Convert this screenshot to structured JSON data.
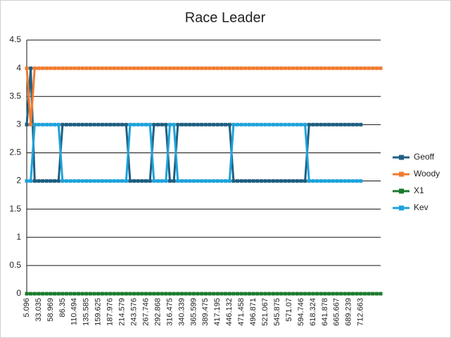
{
  "chart_data": {
    "type": "line",
    "title": "Race Leader",
    "categories": [
      "5.096",
      null,
      null,
      "33.035",
      null,
      null,
      "58.969",
      null,
      null,
      "86.35",
      null,
      null,
      "110.494",
      null,
      null,
      "135.585",
      null,
      null,
      "159.625",
      null,
      null,
      "187.976",
      null,
      null,
      "214.579",
      null,
      null,
      "243.576",
      null,
      null,
      "267.746",
      null,
      null,
      "292.868",
      null,
      null,
      "316.475",
      null,
      null,
      "340.339",
      null,
      null,
      "365.599",
      null,
      null,
      "389.475",
      null,
      null,
      "417.195",
      null,
      null,
      "446.132",
      null,
      null,
      "471.458",
      null,
      null,
      "496.871",
      null,
      null,
      "521.067",
      null,
      null,
      "545.875",
      null,
      null,
      "571.07",
      null,
      null,
      "594.746",
      null,
      null,
      "618.324",
      null,
      null,
      "641.878",
      null,
      null,
      "665.667",
      null,
      null,
      "689.239",
      null,
      null,
      "712.663",
      null,
      null,
      null,
      null,
      null
    ],
    "series": [
      {
        "name": "Geoff",
        "color": "#1f5f82",
        "values": [
          3,
          4,
          2,
          2,
          2,
          2,
          2,
          2,
          2,
          3,
          3,
          3,
          3,
          3,
          3,
          3,
          3,
          3,
          3,
          3,
          3,
          3,
          3,
          3,
          3,
          3,
          2,
          2,
          2,
          2,
          2,
          2,
          3,
          3,
          3,
          3,
          2,
          2,
          3,
          3,
          3,
          3,
          3,
          3,
          3,
          3,
          3,
          3,
          3,
          3,
          3,
          3,
          2,
          2,
          2,
          2,
          2,
          2,
          2,
          2,
          2,
          2,
          2,
          2,
          2,
          2,
          2,
          2,
          2,
          2,
          2,
          3,
          3,
          3,
          3,
          3,
          3,
          3,
          3,
          3,
          3,
          3,
          3,
          3,
          3,
          null,
          null,
          null,
          null,
          null
        ]
      },
      {
        "name": "Woody",
        "color": "#f07b2f",
        "values": [
          4,
          3,
          4,
          4,
          4,
          4,
          4,
          4,
          4,
          4,
          4,
          4,
          4,
          4,
          4,
          4,
          4,
          4,
          4,
          4,
          4,
          4,
          4,
          4,
          4,
          4,
          4,
          4,
          4,
          4,
          4,
          4,
          4,
          4,
          4,
          4,
          4,
          4,
          4,
          4,
          4,
          4,
          4,
          4,
          4,
          4,
          4,
          4,
          4,
          4,
          4,
          4,
          4,
          4,
          4,
          4,
          4,
          4,
          4,
          4,
          4,
          4,
          4,
          4,
          4,
          4,
          4,
          4,
          4,
          4,
          4,
          4,
          4,
          4,
          4,
          4,
          4,
          4,
          4,
          4,
          4,
          4,
          4,
          4,
          4,
          4,
          4,
          4,
          4,
          4
        ]
      },
      {
        "name": "X1",
        "color": "#1b7a2d",
        "values": [
          0,
          0,
          0,
          0,
          0,
          0,
          0,
          0,
          0,
          0,
          0,
          0,
          0,
          0,
          0,
          0,
          0,
          0,
          0,
          0,
          0,
          0,
          0,
          0,
          0,
          0,
          0,
          0,
          0,
          0,
          0,
          0,
          0,
          0,
          0,
          0,
          0,
          0,
          0,
          0,
          0,
          0,
          0,
          0,
          0,
          0,
          0,
          0,
          0,
          0,
          0,
          0,
          0,
          0,
          0,
          0,
          0,
          0,
          0,
          0,
          0,
          0,
          0,
          0,
          0,
          0,
          0,
          0,
          0,
          0,
          0,
          0,
          0,
          0,
          0,
          0,
          0,
          0,
          0,
          0,
          0,
          0,
          0,
          0,
          0,
          0,
          0,
          0,
          0,
          0
        ]
      },
      {
        "name": "Kev",
        "color": "#1ea3db",
        "values": [
          2,
          2,
          3,
          3,
          3,
          3,
          3,
          3,
          3,
          2,
          2,
          2,
          2,
          2,
          2,
          2,
          2,
          2,
          2,
          2,
          2,
          2,
          2,
          2,
          2,
          2,
          3,
          3,
          3,
          3,
          3,
          3,
          2,
          2,
          2,
          2,
          3,
          3,
          2,
          2,
          2,
          2,
          2,
          2,
          2,
          2,
          2,
          2,
          2,
          2,
          2,
          2,
          3,
          3,
          3,
          3,
          3,
          3,
          3,
          3,
          3,
          3,
          3,
          3,
          3,
          3,
          3,
          3,
          3,
          3,
          3,
          2,
          2,
          2,
          2,
          2,
          2,
          2,
          2,
          2,
          2,
          2,
          2,
          2,
          2,
          null,
          null,
          null,
          null,
          null
        ]
      }
    ],
    "ylim": [
      0,
      4.5
    ],
    "yticks": [
      0,
      0.5,
      1,
      1.5,
      2,
      2.5,
      3,
      3.5,
      4,
      4.5
    ],
    "grid": true,
    "legend": "right"
  }
}
